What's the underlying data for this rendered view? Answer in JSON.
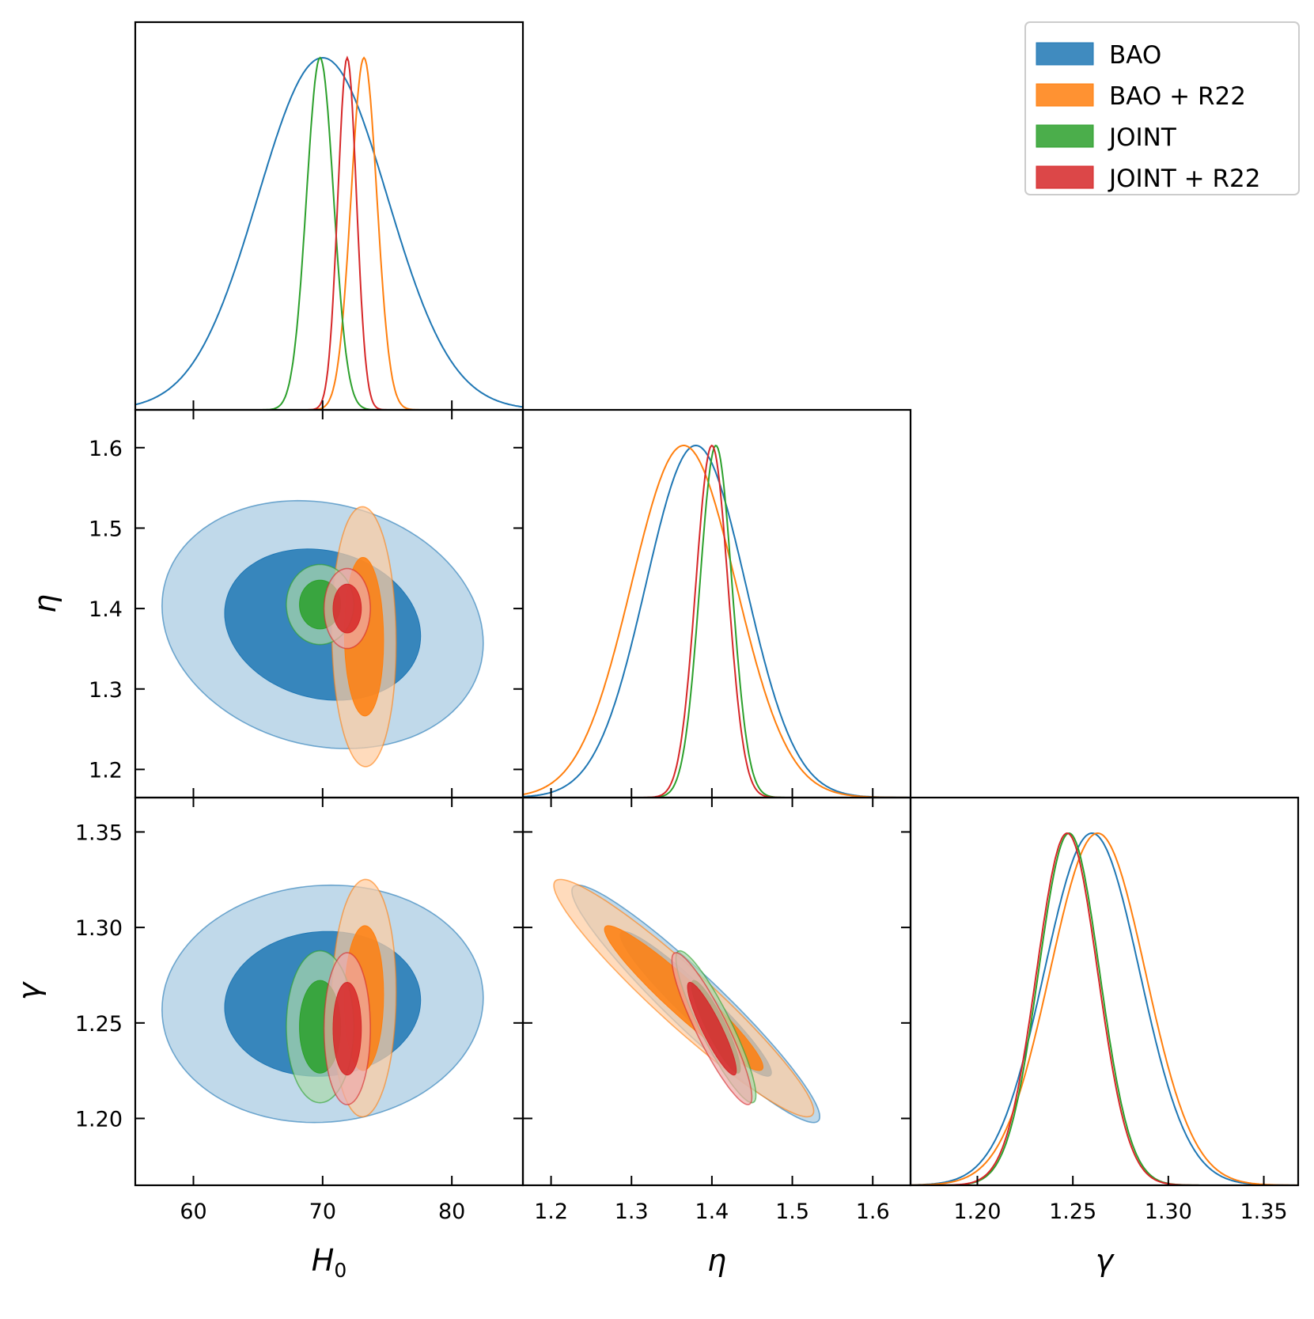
{
  "chart_data": {
    "type": "corner",
    "parameters": [
      {
        "key": "H0",
        "label": "H",
        "subscript": "0",
        "range": [
          55.5,
          85.5
        ],
        "ticks": [
          60,
          70,
          80
        ],
        "tick_labels": [
          "60",
          "70",
          "80"
        ]
      },
      {
        "key": "eta",
        "label": "η",
        "subscript": "",
        "range": [
          1.165,
          1.647
        ],
        "ticks": [
          1.2,
          1.3,
          1.4,
          1.5,
          1.6
        ],
        "tick_labels": [
          "1.2",
          "1.3",
          "1.4",
          "1.5",
          "1.6"
        ]
      },
      {
        "key": "gamma",
        "label": "γ",
        "subscript": "",
        "range": [
          1.165,
          1.368
        ],
        "ticks": [
          1.2,
          1.25,
          1.3,
          1.35
        ],
        "tick_labels": [
          "1.20",
          "1.25",
          "1.30",
          "1.35"
        ]
      }
    ],
    "series": [
      {
        "name": "BAO",
        "color": "#1f77b4",
        "mean": {
          "H0": 70.0,
          "eta": 1.38,
          "gamma": 1.26
        },
        "sigma": {
          "H0": 5.0,
          "eta": 0.062,
          "gamma": 0.025
        },
        "corr": {
          "H0_eta": -0.15,
          "H0_gamma": 0.05,
          "eta_gamma": -0.95
        }
      },
      {
        "name": "BAO + R22",
        "color": "#ff7f0e",
        "mean": {
          "H0": 73.2,
          "eta": 1.365,
          "gamma": 1.263
        },
        "sigma": {
          "H0": 1.0,
          "eta": 0.065,
          "gamma": 0.025
        },
        "corr": {
          "H0_eta": -0.05,
          "H0_gamma": 0.05,
          "eta_gamma": -0.95
        }
      },
      {
        "name": "JOINT",
        "color": "#2ca02c",
        "mean": {
          "H0": 69.8,
          "eta": 1.405,
          "gamma": 1.248
        },
        "sigma": {
          "H0": 1.05,
          "eta": 0.02,
          "gamma": 0.016
        },
        "corr": {
          "H0_eta": 0.0,
          "H0_gamma": 0.0,
          "eta_gamma": -0.9
        }
      },
      {
        "name": "JOINT + R22",
        "color": "#d62728",
        "mean": {
          "H0": 71.9,
          "eta": 1.4,
          "gamma": 1.247
        },
        "sigma": {
          "H0": 0.72,
          "eta": 0.02,
          "gamma": 0.016
        },
        "corr": {
          "H0_eta": 0.0,
          "H0_gamma": 0.0,
          "eta_gamma": -0.9
        }
      }
    ],
    "legend_position": "top-right",
    "grid": false
  }
}
